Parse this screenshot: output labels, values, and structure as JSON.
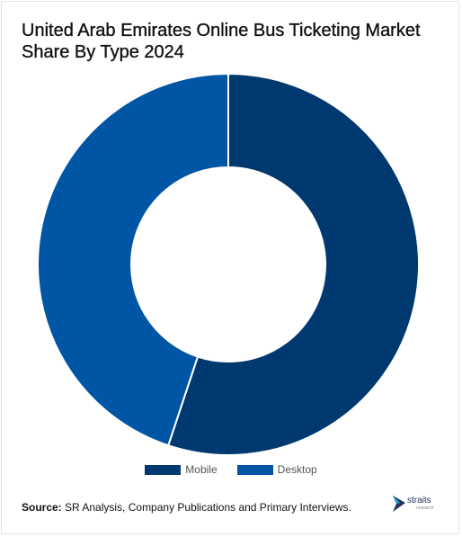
{
  "title": "United Arab Emirates Online Bus Ticketing Market Share By Type 2024",
  "source": {
    "label": "Source:",
    "text": "SR Analysis, Company Publications and Primary Interviews."
  },
  "logo": {
    "name": "straits",
    "sub": "research"
  },
  "colors": {
    "Mobile": "#00396f",
    "Desktop": "#0055a5"
  },
  "chart_data": {
    "type": "pie",
    "variant": "donut",
    "title": "United Arab Emirates Online Bus Ticketing Market Share By Type 2024",
    "categories": [
      "Mobile",
      "Desktop"
    ],
    "values": [
      55.1,
      44.9
    ],
    "unit": "%",
    "legend": "bottom-center"
  }
}
